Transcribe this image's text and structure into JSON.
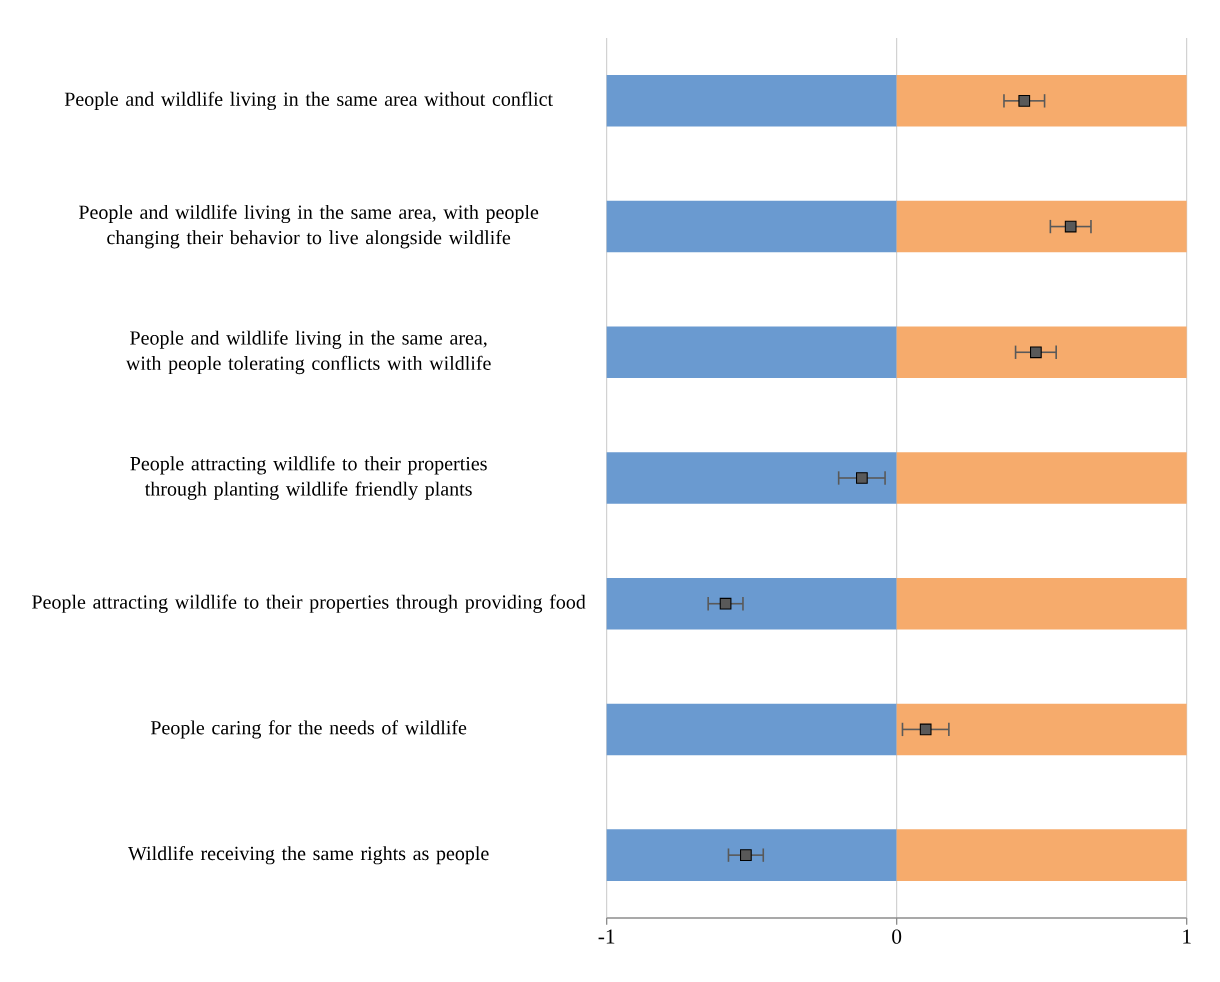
{
  "chart_data": {
    "type": "bar",
    "orientation": "horizontal",
    "categories": [
      "People and wildlife living in the same area without conflict",
      "People and wildlife living in the same area, with people changing their behavior to live alongside wildlife",
      "People and wildlife living in the same area, with people tolerating conflicts with wildlife",
      "People attracting wildlife to their properties through planting wildlife friendly plants",
      "People attracting wildlife to their properties through providing food",
      "People caring for the needs of wildlife",
      "Wildlife receiving the same rights as people"
    ],
    "series": [
      {
        "color": "#6a9ad0",
        "values": [
          1,
          1,
          1,
          1,
          1,
          1,
          1
        ],
        "base": [
          -1,
          -1,
          -1,
          -1,
          -1,
          -1,
          -1
        ]
      },
      {
        "color": "#f6ab6c",
        "values": [
          1,
          1,
          1,
          1,
          1,
          1,
          1
        ],
        "base": [
          0,
          0,
          0,
          0,
          0,
          0,
          0
        ]
      },
      {
        "type": "scatter",
        "color": "#595959",
        "marker": "square",
        "values": [
          0.44,
          0.6,
          0.48,
          -0.12,
          -0.59,
          0.1,
          -0.52
        ],
        "errors": [
          0.07,
          0.07,
          0.07,
          0.08,
          0.06,
          0.08,
          0.06
        ]
      }
    ],
    "xlim": [
      -1,
      1
    ],
    "xticks": [
      -1,
      0,
      1
    ],
    "grid": "x"
  }
}
